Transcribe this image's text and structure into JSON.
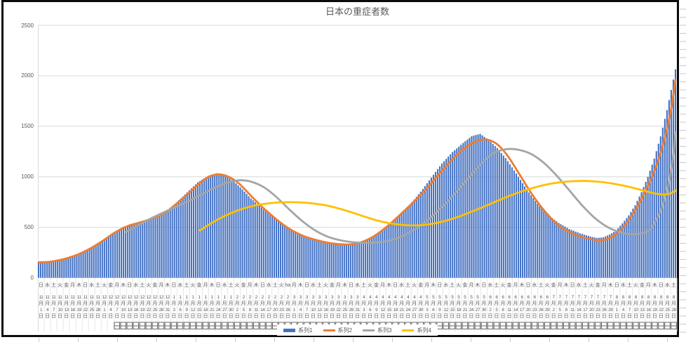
{
  "chart_data": {
    "type": "combo",
    "title": "日本の重症者数",
    "ylim": [
      0,
      2500
    ],
    "y_ticks": [
      "0",
      "500",
      "1000",
      "1500",
      "2000",
      "2500"
    ],
    "x_start_date": "2020-11-01",
    "x_end_date": "2021-08-28",
    "x_label_interval_days": 3,
    "n_days": 301,
    "grid": "horizontal",
    "legend_position": "bottom",
    "colors": {
      "bar_blue": "#4472C4",
      "line_orange": "#ED7D31",
      "line_gray": "#A5A5A5",
      "line_yellow": "#FFC000",
      "gridline": "#D9D9D9",
      "axis_text": "#595959",
      "frame_border": "#0b0b0b"
    },
    "x_labels": {
      "weekday_cycle": [
        "日",
        "水",
        "土",
        "火",
        "金",
        "月",
        "木"
      ],
      "weekday_override": {
        "39": "ha"
      },
      "month_suffix": "月",
      "day_suffix": "日",
      "clipped_row_glyph": "日",
      "clipped_row_start_index": 12,
      "groups": [
        {
          "month": "11",
          "days": [
            1,
            4,
            7,
            10,
            13,
            16,
            19,
            22,
            25,
            28
          ]
        },
        {
          "month": "12",
          "days": [
            1,
            4,
            7,
            10,
            13,
            16,
            19,
            22,
            25,
            28,
            31
          ]
        },
        {
          "month": "1",
          "days": [
            3,
            6,
            9,
            12,
            15,
            18,
            21,
            24,
            27,
            30
          ]
        },
        {
          "month": "2",
          "days": [
            2,
            5,
            8,
            11,
            14,
            17,
            20,
            23,
            26
          ]
        },
        {
          "month": "3",
          "days": [
            1,
            4,
            7,
            10,
            13,
            16,
            19,
            22,
            25,
            28,
            31
          ]
        },
        {
          "month": "4",
          "days": [
            3,
            6,
            9,
            12,
            15,
            18,
            21,
            24,
            27,
            30
          ]
        },
        {
          "month": "5",
          "days": [
            3,
            6,
            9,
            12,
            15,
            18,
            21,
            24,
            27,
            30
          ]
        },
        {
          "month": "6",
          "days": [
            2,
            5,
            8,
            11,
            14,
            17,
            20,
            23,
            26,
            29
          ]
        },
        {
          "month": "7",
          "days": [
            2,
            5,
            8,
            11,
            14,
            17,
            20,
            23,
            26,
            29
          ]
        },
        {
          "month": "8",
          "days": [
            1,
            4,
            7,
            10,
            13,
            16,
            19,
            22,
            25,
            28
          ]
        }
      ]
    },
    "series": [
      {
        "name": "系列1",
        "type": "bar",
        "color": "#4472C4",
        "keypoints": [
          [
            0,
            150
          ],
          [
            5,
            158
          ],
          [
            10,
            172
          ],
          [
            15,
            205
          ],
          [
            20,
            250
          ],
          [
            25,
            305
          ],
          [
            30,
            372
          ],
          [
            35,
            445
          ],
          [
            40,
            505
          ],
          [
            45,
            540
          ],
          [
            50,
            570
          ],
          [
            55,
            605
          ],
          [
            60,
            660
          ],
          [
            65,
            745
          ],
          [
            70,
            845
          ],
          [
            75,
            945
          ],
          [
            80,
            1010
          ],
          [
            84,
            1035
          ],
          [
            88,
            1010
          ],
          [
            92,
            955
          ],
          [
            96,
            875
          ],
          [
            100,
            785
          ],
          [
            105,
            695
          ],
          [
            110,
            605
          ],
          [
            115,
            528
          ],
          [
            120,
            462
          ],
          [
            125,
            412
          ],
          [
            130,
            376
          ],
          [
            135,
            349
          ],
          [
            140,
            334
          ],
          [
            145,
            329
          ],
          [
            150,
            344
          ],
          [
            155,
            382
          ],
          [
            160,
            442
          ],
          [
            165,
            522
          ],
          [
            170,
            622
          ],
          [
            175,
            725
          ],
          [
            180,
            852
          ],
          [
            185,
            992
          ],
          [
            190,
            1132
          ],
          [
            195,
            1245
          ],
          [
            200,
            1335
          ],
          [
            204,
            1402
          ],
          [
            208,
            1425
          ],
          [
            212,
            1365
          ],
          [
            216,
            1285
          ],
          [
            220,
            1185
          ],
          [
            225,
            1032
          ],
          [
            230,
            872
          ],
          [
            235,
            732
          ],
          [
            240,
            622
          ],
          [
            245,
            542
          ],
          [
            250,
            482
          ],
          [
            255,
            440
          ],
          [
            260,
            408
          ],
          [
            263,
            394
          ],
          [
            266,
            400
          ],
          [
            269,
            428
          ],
          [
            272,
            468
          ],
          [
            275,
            538
          ],
          [
            278,
            618
          ],
          [
            281,
            718
          ],
          [
            284,
            848
          ],
          [
            287,
            1000
          ],
          [
            290,
            1180
          ],
          [
            293,
            1400
          ],
          [
            296,
            1660
          ],
          [
            298,
            1860
          ],
          [
            300,
            2065
          ]
        ]
      },
      {
        "name": "系列2",
        "type": "line",
        "color": "#ED7D31",
        "keypoints": [
          [
            0,
            152
          ],
          [
            6,
            160
          ],
          [
            12,
            185
          ],
          [
            18,
            225
          ],
          [
            24,
            285
          ],
          [
            30,
            362
          ],
          [
            36,
            448
          ],
          [
            42,
            512
          ],
          [
            48,
            548
          ],
          [
            54,
            590
          ],
          [
            60,
            648
          ],
          [
            66,
            752
          ],
          [
            72,
            862
          ],
          [
            78,
            972
          ],
          [
            83,
            1020
          ],
          [
            88,
            1012
          ],
          [
            94,
            940
          ],
          [
            100,
            812
          ],
          [
            106,
            688
          ],
          [
            112,
            578
          ],
          [
            118,
            486
          ],
          [
            124,
            420
          ],
          [
            130,
            378
          ],
          [
            136,
            348
          ],
          [
            142,
            332
          ],
          [
            147,
            330
          ],
          [
            152,
            352
          ],
          [
            158,
            412
          ],
          [
            164,
            505
          ],
          [
            170,
            618
          ],
          [
            176,
            738
          ],
          [
            182,
            866
          ],
          [
            188,
            1010
          ],
          [
            194,
            1152
          ],
          [
            200,
            1272
          ],
          [
            206,
            1350
          ],
          [
            211,
            1368
          ],
          [
            216,
            1322
          ],
          [
            221,
            1205
          ],
          [
            226,
            1042
          ],
          [
            231,
            872
          ],
          [
            236,
            722
          ],
          [
            241,
            598
          ],
          [
            246,
            502
          ],
          [
            251,
            442
          ],
          [
            256,
            402
          ],
          [
            261,
            378
          ],
          [
            265,
            372
          ],
          [
            269,
            392
          ],
          [
            273,
            448
          ],
          [
            277,
            542
          ],
          [
            281,
            668
          ],
          [
            285,
            822
          ],
          [
            289,
            1005
          ],
          [
            293,
            1235
          ],
          [
            296,
            1475
          ],
          [
            298,
            1680
          ],
          [
            300,
            1960
          ]
        ]
      },
      {
        "name": "系列3",
        "type": "line",
        "color": "#A5A5A5",
        "keypoints": [
          [
            41,
            452
          ],
          [
            47,
            520
          ],
          [
            53,
            588
          ],
          [
            59,
            648
          ],
          [
            65,
            705
          ],
          [
            71,
            762
          ],
          [
            77,
            828
          ],
          [
            83,
            892
          ],
          [
            89,
            942
          ],
          [
            95,
            965
          ],
          [
            100,
            952
          ],
          [
            106,
            898
          ],
          [
            112,
            800
          ],
          [
            118,
            678
          ],
          [
            124,
            565
          ],
          [
            130,
            472
          ],
          [
            136,
            408
          ],
          [
            142,
            372
          ],
          [
            148,
            352
          ],
          [
            154,
            345
          ],
          [
            160,
            350
          ],
          [
            166,
            372
          ],
          [
            172,
            418
          ],
          [
            178,
            490
          ],
          [
            184,
            585
          ],
          [
            190,
            700
          ],
          [
            196,
            832
          ],
          [
            202,
            975
          ],
          [
            208,
            1118
          ],
          [
            214,
            1230
          ],
          [
            220,
            1272
          ],
          [
            226,
            1268
          ],
          [
            232,
            1225
          ],
          [
            238,
            1138
          ],
          [
            244,
            1012
          ],
          [
            250,
            865
          ],
          [
            256,
            718
          ],
          [
            262,
            592
          ],
          [
            268,
            502
          ],
          [
            274,
            450
          ],
          [
            279,
            430
          ],
          [
            284,
            440
          ],
          [
            288,
            478
          ],
          [
            290,
            540
          ],
          [
            293,
            660
          ],
          [
            295,
            790
          ],
          [
            297,
            960
          ],
          [
            299,
            1220
          ],
          [
            300,
            1440
          ]
        ]
      },
      {
        "name": "系列4",
        "type": "line",
        "color": "#FFC000",
        "keypoints": [
          [
            76,
            470
          ],
          [
            82,
            548
          ],
          [
            88,
            615
          ],
          [
            94,
            668
          ],
          [
            100,
            706
          ],
          [
            106,
            730
          ],
          [
            112,
            744
          ],
          [
            118,
            748
          ],
          [
            124,
            745
          ],
          [
            130,
            734
          ],
          [
            136,
            714
          ],
          [
            142,
            682
          ],
          [
            148,
            644
          ],
          [
            154,
            602
          ],
          [
            160,
            564
          ],
          [
            166,
            537
          ],
          [
            172,
            522
          ],
          [
            177,
            518
          ],
          [
            182,
            524
          ],
          [
            187,
            540
          ],
          [
            192,
            566
          ],
          [
            198,
            606
          ],
          [
            204,
            654
          ],
          [
            210,
            706
          ],
          [
            216,
            760
          ],
          [
            222,
            812
          ],
          [
            228,
            858
          ],
          [
            234,
            896
          ],
          [
            240,
            926
          ],
          [
            246,
            946
          ],
          [
            252,
            956
          ],
          [
            258,
            958
          ],
          [
            264,
            950
          ],
          [
            270,
            934
          ],
          [
            276,
            910
          ],
          [
            282,
            880
          ],
          [
            287,
            852
          ],
          [
            291,
            832
          ],
          [
            294,
            824
          ],
          [
            296,
            826
          ],
          [
            298,
            838
          ],
          [
            300,
            862
          ]
        ]
      }
    ]
  }
}
